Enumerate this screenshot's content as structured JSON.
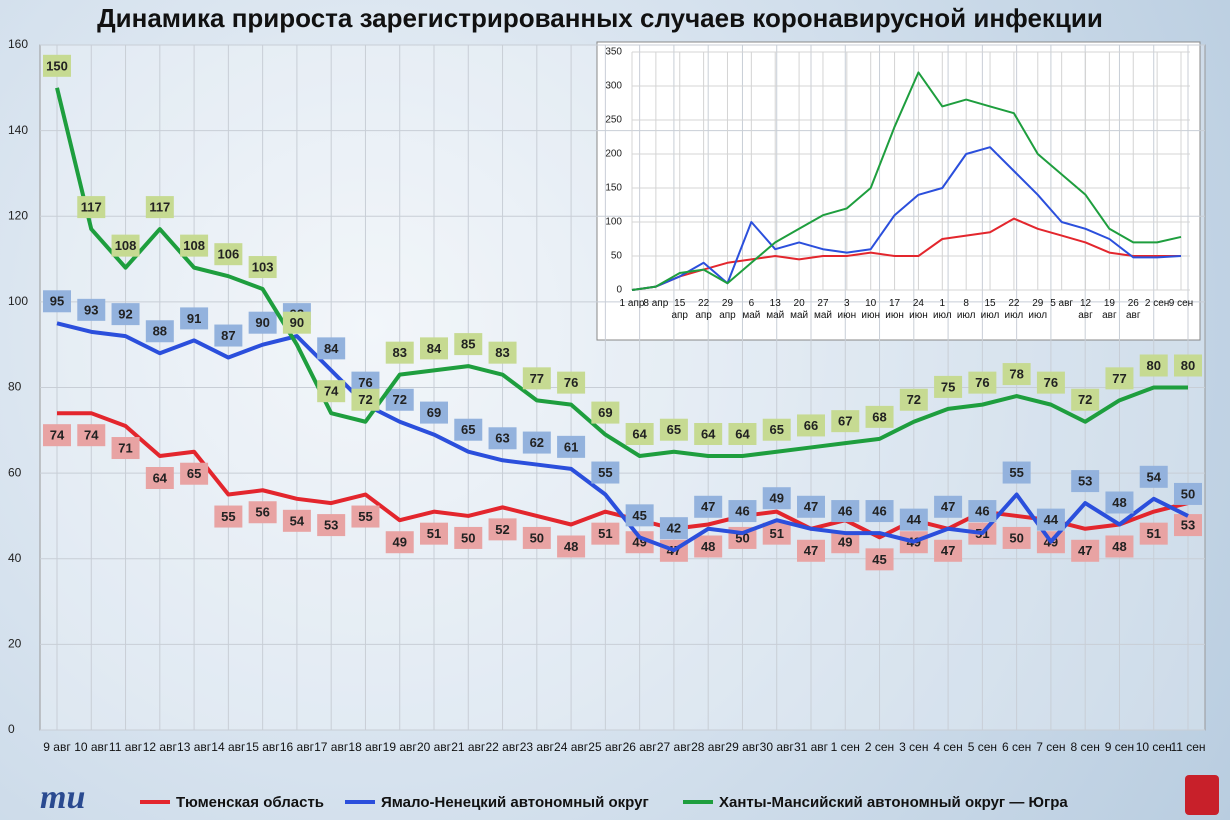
{
  "chart_data": [
    {
      "type": "line",
      "title": "Динамика прироста зарегистрированных случаев коронавирусной инфекции",
      "categories": [
        "9 авг",
        "10 авг",
        "11 авг",
        "12 авг",
        "13 авг",
        "14 авг",
        "15 авг",
        "16 авг",
        "17 авг",
        "18 авг",
        "19 авг",
        "20 авг",
        "21 авг",
        "22 авг",
        "23 авг",
        "24 авг",
        "25 авг",
        "26 авг",
        "27 авг",
        "28 авг",
        "29 авг",
        "30 авг",
        "31 авг",
        "1 сен",
        "2 сен",
        "3 сен",
        "4 сен",
        "5 сен",
        "6 сен",
        "7 сен",
        "8 сен",
        "9 сен",
        "10 сен",
        "11 сен"
      ],
      "series": [
        {
          "name": "Тюменская область",
          "color": "#e3262d",
          "label_color": "#e8a3a3",
          "values": [
            74,
            74,
            71,
            64,
            65,
            55,
            56,
            54,
            53,
            55,
            49,
            51,
            50,
            52,
            50,
            48,
            51,
            49,
            47,
            48,
            50,
            51,
            47,
            49,
            45,
            49,
            47,
            51,
            50,
            49,
            47,
            48,
            51,
            53
          ]
        },
        {
          "name": "Ямало-Ненецкий автономный округ",
          "color": "#2b4fdc",
          "label_color": "#93b2dd",
          "values": [
            95,
            93,
            92,
            88,
            91,
            87,
            90,
            92,
            84,
            76,
            72,
            69,
            65,
            63,
            62,
            61,
            55,
            45,
            42,
            47,
            46,
            49,
            47,
            46,
            46,
            44,
            47,
            46,
            55,
            44,
            53,
            48,
            54,
            50
          ]
        },
        {
          "name": "Ханты-Мансийский автономный округ — Югра",
          "color": "#1e9e3e",
          "label_color": "#c6da92",
          "values": [
            150,
            117,
            108,
            117,
            108,
            106,
            103,
            90,
            74,
            72,
            83,
            84,
            85,
            83,
            77,
            76,
            69,
            64,
            65,
            64,
            64,
            65,
            66,
            67,
            68,
            72,
            75,
            76,
            78,
            76,
            72,
            77,
            80,
            80
          ]
        }
      ],
      "ylim": [
        0,
        160
      ],
      "yticks": [
        0,
        20,
        40,
        60,
        80,
        100,
        120,
        140,
        160
      ],
      "grid": true,
      "legend": "bottom"
    },
    {
      "type": "line",
      "categories": [
        "1 апр",
        "8 апр",
        "15 апр",
        "22 апр",
        "29 апр",
        "6 май",
        "13 май",
        "20 май",
        "27 май",
        "3 июн",
        "10 июн",
        "17 июн",
        "24 июн",
        "1 июл",
        "8 июл",
        "15 июл",
        "22 июл",
        "29 июл",
        "5 авг",
        "12 авг",
        "19 авг",
        "26 авг",
        "2 сен",
        "9 сен"
      ],
      "series": [
        {
          "color": "#e3262d",
          "values": [
            0,
            5,
            20,
            30,
            40,
            45,
            50,
            45,
            50,
            50,
            55,
            50,
            50,
            75,
            80,
            85,
            105,
            90,
            80,
            70,
            55,
            50,
            50,
            50
          ]
        },
        {
          "color": "#2b4fdc",
          "values": [
            0,
            5,
            20,
            40,
            10,
            100,
            60,
            70,
            60,
            55,
            60,
            110,
            140,
            150,
            200,
            210,
            175,
            140,
            100,
            90,
            75,
            48,
            48,
            50
          ]
        },
        {
          "color": "#1e9e3e",
          "values": [
            0,
            5,
            25,
            30,
            10,
            40,
            70,
            90,
            110,
            120,
            150,
            240,
            320,
            270,
            280,
            270,
            260,
            200,
            170,
            140,
            90,
            70,
            70,
            78
          ]
        }
      ],
      "ylim": [
        0,
        350
      ],
      "yticks": [
        0,
        50,
        100,
        150,
        200,
        250,
        300,
        350
      ],
      "grid": true
    }
  ],
  "logo": "mu"
}
